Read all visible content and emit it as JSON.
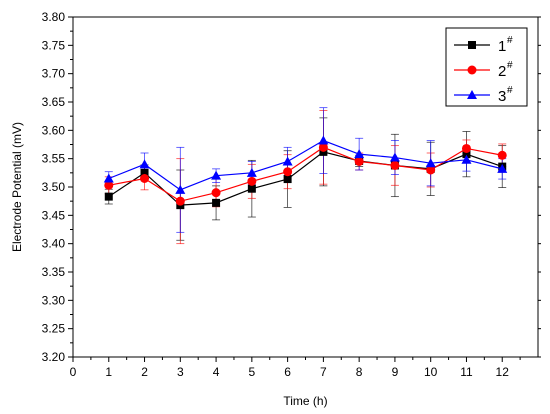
{
  "chart_data": {
    "type": "line",
    "title": "",
    "xlabel": "Time (h)",
    "ylabel": "Electrode Potential (mV)",
    "xlim": [
      0,
      13
    ],
    "ylim": [
      3.2,
      3.8
    ],
    "x_ticks": [
      "0",
      "1",
      "2",
      "3",
      "4",
      "5",
      "6",
      "7",
      "8",
      "9",
      "10",
      "11",
      "12"
    ],
    "y_ticks": [
      "3.20",
      "3.25",
      "3.30",
      "3.35",
      "3.40",
      "3.45",
      "3.50",
      "3.55",
      "3.60",
      "3.65",
      "3.70",
      "3.75",
      "3.80"
    ],
    "grid": false,
    "legend_position": "top-right",
    "x": [
      1,
      2,
      3,
      4,
      5,
      6,
      7,
      8,
      9,
      10,
      11,
      12
    ],
    "series": [
      {
        "name": "1",
        "superscript": "#",
        "color": "#000000",
        "marker": "square",
        "values": [
          3.483,
          3.525,
          3.468,
          3.472,
          3.497,
          3.514,
          3.562,
          3.546,
          3.538,
          3.532,
          3.558,
          3.536
        ],
        "errors": [
          0.013,
          0.014,
          0.062,
          0.03,
          0.05,
          0.05,
          0.06,
          0.01,
          0.055,
          0.047,
          0.04,
          0.037
        ]
      },
      {
        "name": "2",
        "superscript": "#",
        "color": "#ff0000",
        "marker": "circle",
        "values": [
          3.503,
          3.515,
          3.475,
          3.49,
          3.51,
          3.527,
          3.57,
          3.545,
          3.538,
          3.53,
          3.568,
          3.556
        ],
        "errors": [
          0.015,
          0.02,
          0.075,
          0.025,
          0.03,
          0.03,
          0.065,
          0.015,
          0.035,
          0.03,
          0.015,
          0.02
        ]
      },
      {
        "name": "3",
        "superscript": "#",
        "color": "#0000ff",
        "marker": "triangle",
        "values": [
          3.515,
          3.54,
          3.495,
          3.52,
          3.525,
          3.545,
          3.582,
          3.558,
          3.552,
          3.542,
          3.548,
          3.532
        ],
        "errors": [
          0.012,
          0.02,
          0.075,
          0.012,
          0.02,
          0.025,
          0.058,
          0.028,
          0.03,
          0.04,
          0.02,
          0.018
        ]
      }
    ]
  }
}
